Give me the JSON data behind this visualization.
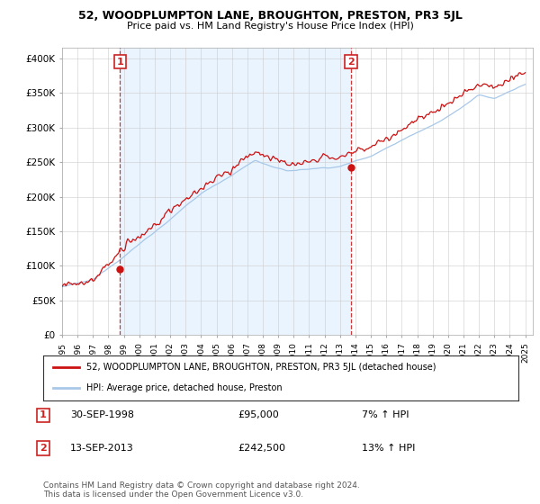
{
  "title": "52, WOODPLUMPTON LANE, BROUGHTON, PRESTON, PR3 5JL",
  "subtitle": "Price paid vs. HM Land Registry's House Price Index (HPI)",
  "ylabel_ticks": [
    "£0",
    "£50K",
    "£100K",
    "£150K",
    "£200K",
    "£250K",
    "£300K",
    "£350K",
    "£400K"
  ],
  "ytick_values": [
    0,
    50000,
    100000,
    150000,
    200000,
    250000,
    300000,
    350000,
    400000
  ],
  "ylim": [
    0,
    415000
  ],
  "xlim_start": 1995.0,
  "xlim_end": 2025.5,
  "sale1": {
    "label": "1",
    "date": "30-SEP-1998",
    "price": 95000,
    "x": 1998.75,
    "pct": "7%",
    "direction": "↑"
  },
  "sale2": {
    "label": "2",
    "date": "13-SEP-2013",
    "price": 242500,
    "x": 2013.71,
    "pct": "13%",
    "direction": "↑"
  },
  "hpi_color": "#a8c8e8",
  "price_color": "#cc1111",
  "vline_color": "#cc2222",
  "shade_color": "#ddeeff",
  "annotation_box_color": "#cc2222",
  "legend_label_price": "52, WOODPLUMPTON LANE, BROUGHTON, PRESTON, PR3 5JL (detached house)",
  "legend_label_hpi": "HPI: Average price, detached house, Preston",
  "footer": "Contains HM Land Registry data © Crown copyright and database right 2024.\nThis data is licensed under the Open Government Licence v3.0.",
  "background_color": "#ffffff",
  "grid_color": "#cccccc",
  "title_fontsize": 9,
  "subtitle_fontsize": 8
}
